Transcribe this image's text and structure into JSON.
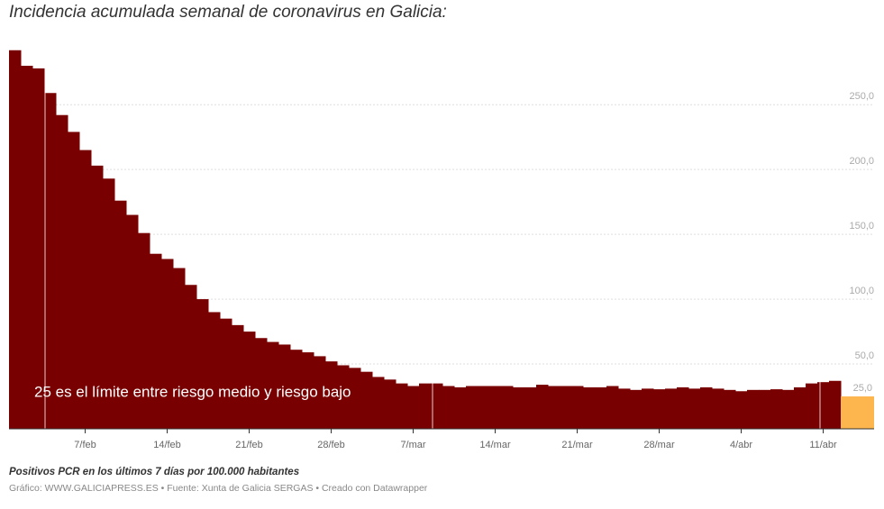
{
  "chart_data": {
    "type": "bar",
    "title": "Incidencia acumulada semanal de coronavirus en Galicia:",
    "note": "Positivos PCR en los últimos 7 días por 100.000 habitantes",
    "source": "Gráfico: WWW.GALICIAPRESS.ES • Fuente: Xunta de Galicia SERGAS • Creado con Datawrapper",
    "annotation": "25 es el límite entre riesgo medio y riesgo bajo",
    "categories": [
      null,
      null,
      null,
      null,
      null,
      null,
      "7/feb",
      null,
      null,
      null,
      null,
      null,
      null,
      "14/feb",
      null,
      null,
      null,
      null,
      null,
      null,
      "21/feb",
      null,
      null,
      null,
      null,
      null,
      null,
      "28/feb",
      null,
      null,
      null,
      null,
      null,
      null,
      "7/mar",
      null,
      null,
      null,
      null,
      null,
      null,
      "14/mar",
      null,
      null,
      null,
      null,
      null,
      null,
      "21/mar",
      null,
      null,
      null,
      null,
      null,
      null,
      "28/mar",
      null,
      null,
      null,
      null,
      null,
      null,
      "4/abr",
      null,
      null,
      null,
      null,
      null,
      null,
      "11/abr",
      null,
      null
    ],
    "series": [
      {
        "color": "#780000",
        "values": [
          292,
          280,
          278,
          259,
          242,
          229,
          215,
          203,
          193,
          176,
          165,
          151,
          135,
          131,
          124,
          111,
          100,
          90,
          85,
          80,
          75,
          70,
          67,
          65,
          61,
          59,
          56,
          52,
          49,
          47,
          44,
          40,
          38,
          35,
          33,
          35,
          35,
          33,
          32,
          33,
          33,
          33,
          33,
          32,
          32,
          34,
          33,
          33,
          33,
          32,
          32,
          33,
          31,
          30,
          31,
          30.5,
          31,
          32,
          31,
          32,
          31,
          30,
          29,
          30,
          30,
          30.5,
          30,
          32,
          35,
          36,
          37,
          null
        ]
      },
      {
        "color": "#fdb54e",
        "values": [
          null,
          null,
          null,
          null,
          null,
          null,
          null,
          null,
          null,
          null,
          null,
          null,
          null,
          null,
          null,
          null,
          null,
          null,
          null,
          null,
          null,
          null,
          null,
          null,
          null,
          null,
          null,
          null,
          null,
          null,
          null,
          null,
          null,
          null,
          null,
          null,
          null,
          null,
          null,
          null,
          null,
          null,
          null,
          null,
          null,
          null,
          null,
          null,
          null,
          null,
          null,
          null,
          null,
          null,
          null,
          null,
          null,
          null,
          null,
          null,
          null,
          null,
          null,
          null,
          null,
          null,
          null,
          null,
          null,
          null,
          null,
          25
        ],
        "value_labels": [
          null,
          null,
          null,
          null,
          null,
          null,
          null,
          null,
          null,
          null,
          null,
          null,
          null,
          null,
          null,
          null,
          null,
          null,
          null,
          null,
          null,
          null,
          null,
          null,
          null,
          null,
          null,
          null,
          null,
          null,
          null,
          null,
          null,
          null,
          null,
          null,
          null,
          null,
          null,
          null,
          null,
          null,
          null,
          null,
          null,
          null,
          null,
          null,
          null,
          null,
          null,
          null,
          null,
          null,
          null,
          null,
          null,
          null,
          null,
          null,
          null,
          null,
          null,
          null,
          null,
          null,
          null,
          null,
          null,
          null,
          null,
          "25,0"
        ]
      }
    ],
    "ylim": [
      0,
      296
    ],
    "yticks": [
      {
        "value": 50,
        "label": "50,0"
      },
      {
        "value": 100,
        "label": "100,0"
      },
      {
        "value": 150,
        "label": "150,0"
      },
      {
        "value": 200,
        "label": "200,0"
      },
      {
        "value": 250,
        "label": "250,0"
      }
    ],
    "grid": true
  }
}
